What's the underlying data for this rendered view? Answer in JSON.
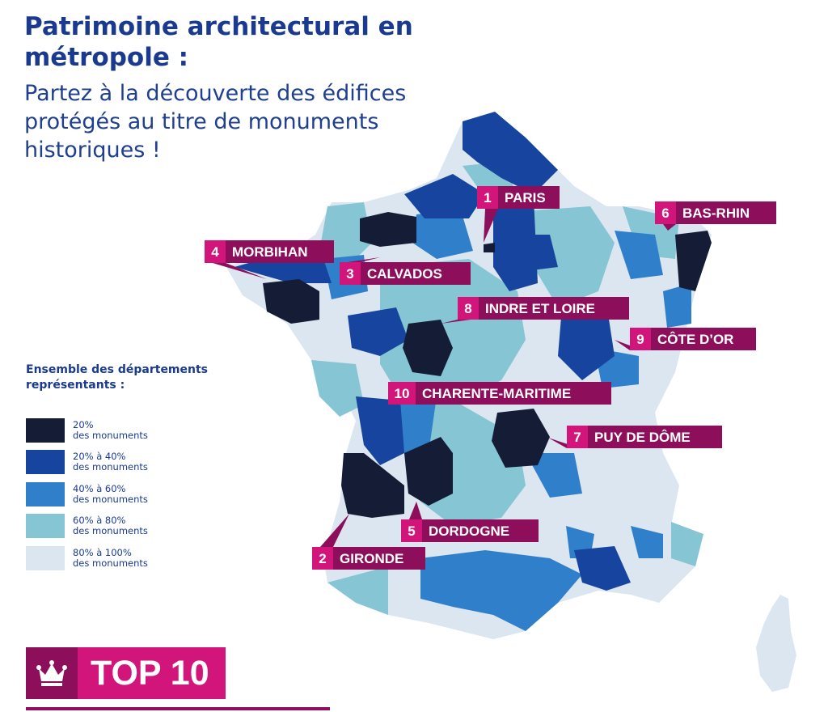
{
  "title": "Patrimoine architectural en métropole :",
  "subtitle": "Partez à la découverte des édifices protégés au titre de monuments historiques !",
  "legend": {
    "title": "Ensemble des départements représentants :",
    "items": [
      {
        "label": "20%\ndes monuments",
        "color": "#151c36"
      },
      {
        "label": "20% à 40%\ndes monuments",
        "color": "#16449e"
      },
      {
        "label": "40% à 60%\ndes monuments",
        "color": "#2f7fcb"
      },
      {
        "label": "60% à 80%\ndes monuments",
        "color": "#86c5d4"
      },
      {
        "label": "80% à 100%\ndes monuments",
        "color": "#dbe6f1"
      }
    ]
  },
  "top10_label": "TOP 10",
  "markers": [
    {
      "rank": "1",
      "name": "PARIS"
    },
    {
      "rank": "2",
      "name": "GIRONDE"
    },
    {
      "rank": "3",
      "name": "CALVADOS"
    },
    {
      "rank": "4",
      "name": "MORBIHAN"
    },
    {
      "rank": "5",
      "name": "DORDOGNE"
    },
    {
      "rank": "6",
      "name": "BAS-RHIN"
    },
    {
      "rank": "7",
      "name": "PUY DE DÔME"
    },
    {
      "rank": "8",
      "name": "INDRE ET LOIRE"
    },
    {
      "rank": "9",
      "name": "CÔTE D’OR"
    },
    {
      "rank": "10",
      "name": "CHARENTE-MARITIME"
    }
  ],
  "colors": {
    "label_dark": "#8d0f5c",
    "label_pink": "#d1157a",
    "title_blue": "#1a3a8f"
  }
}
